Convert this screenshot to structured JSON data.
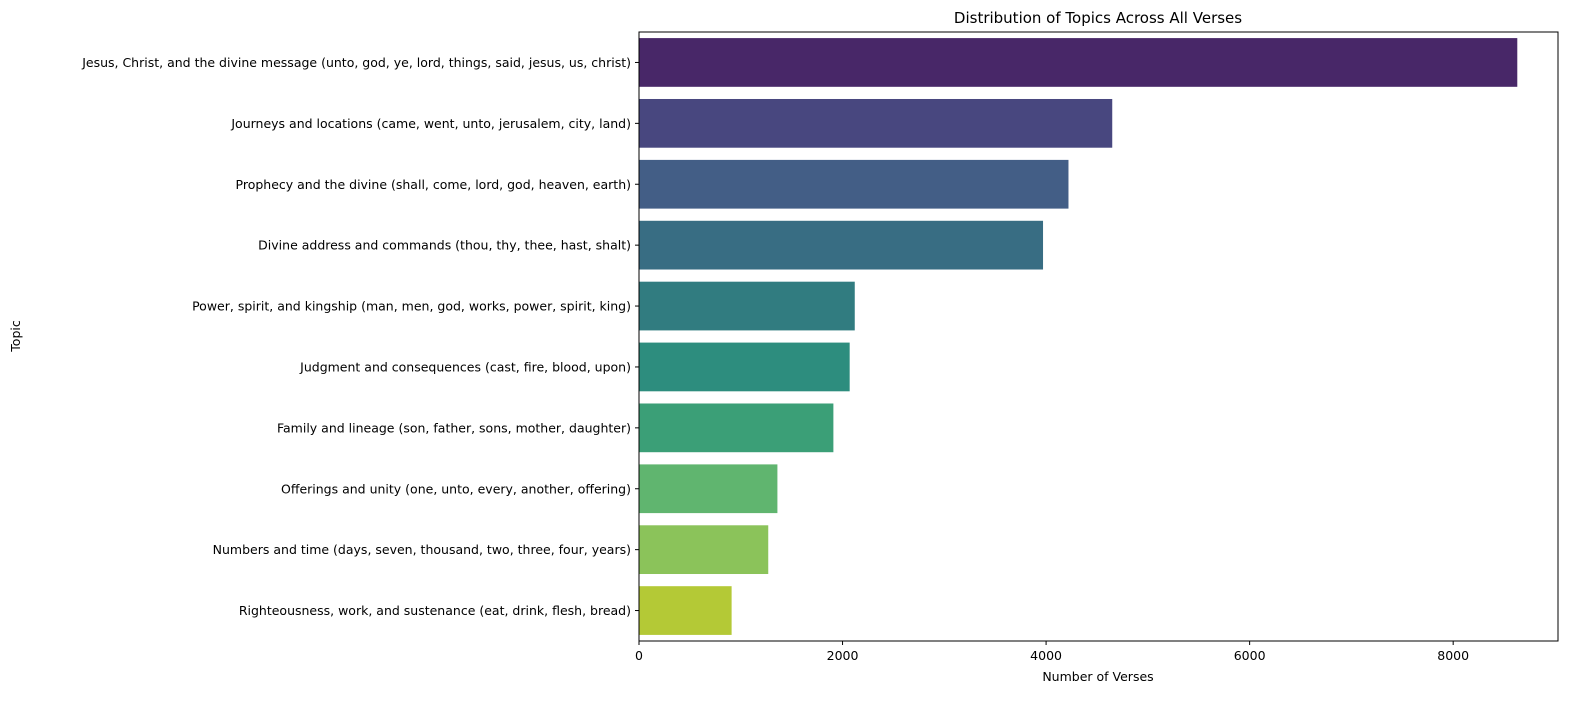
{
  "chart_data": {
    "type": "bar",
    "orientation": "horizontal",
    "title": "Distribution of Topics Across All Verses",
    "xlabel": "Number of Verses",
    "ylabel": "Topic",
    "xlim": [
      0,
      9030
    ],
    "xticks": [
      0,
      2000,
      4000,
      6000,
      8000
    ],
    "grid": false,
    "categories": [
      "Jesus, Christ, and the divine message (unto, god, ye, lord, things, said, jesus, us, christ)",
      "Journeys and locations (came, went, unto, jerusalem, city, land)",
      "Prophecy and the divine (shall, come, lord, god, heaven, earth)",
      "Divine address and commands (thou, thy, thee, hast, shalt)",
      "Power, spirit, and kingship (man, men, god, works, power, spirit, king)",
      "Judgment and consequences (cast, fire, blood, upon)",
      "Family and lineage (son, father, sons, mother, daughter)",
      "Offerings and unity (one, unto, every, another, offering)",
      "Numbers and time (days, seven, thousand, two, three, four, years)",
      "Righteousness, work, and sustenance (eat, drink, flesh, bread)"
    ],
    "values": [
      8630,
      4650,
      4220,
      3970,
      2120,
      2070,
      1910,
      1360,
      1270,
      910
    ],
    "colors": [
      "#482768",
      "#48477f",
      "#435e86",
      "#386d83",
      "#317c80",
      "#2d8d7e",
      "#3b9f77",
      "#60b56f",
      "#8bc35a",
      "#b4c936"
    ]
  }
}
